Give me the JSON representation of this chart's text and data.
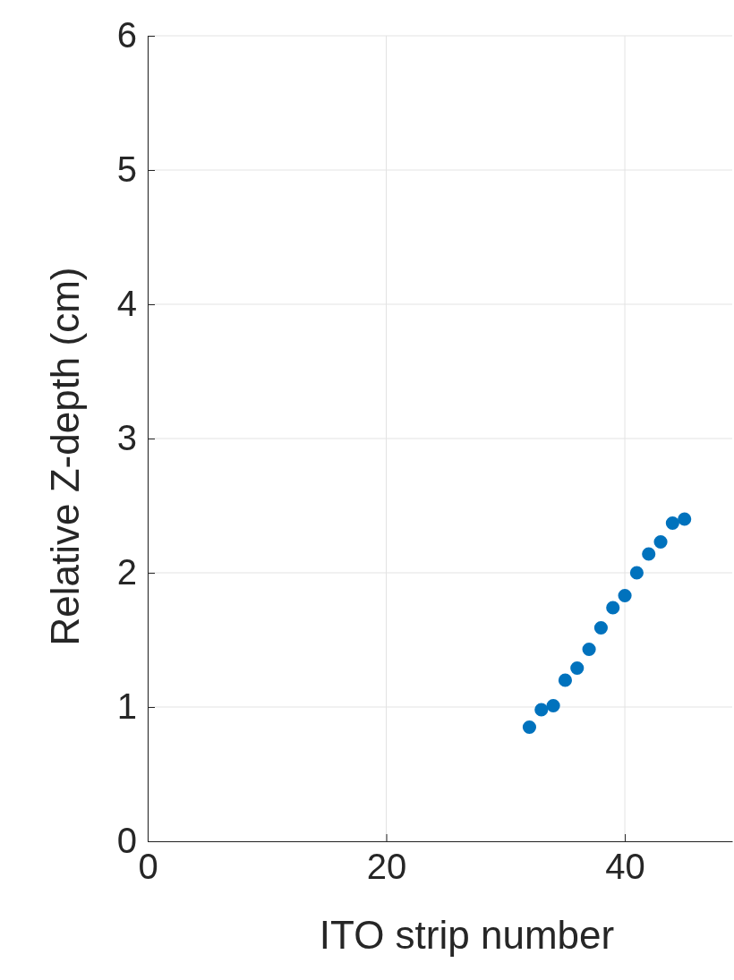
{
  "chart_data": {
    "type": "scatter",
    "xlabel": "ITO strip number",
    "ylabel": "Relative Z-depth (cm)",
    "x": [
      32,
      33,
      34,
      35,
      36,
      37,
      38,
      39,
      40,
      41,
      42,
      43,
      44,
      45
    ],
    "values": [
      0.85,
      0.98,
      1.01,
      1.2,
      1.29,
      1.43,
      1.59,
      1.74,
      1.83,
      2.0,
      2.14,
      2.23,
      2.37,
      2.4
    ],
    "color": "#0072bd",
    "marker": "circle",
    "grid": true,
    "xlim": [
      0,
      49
    ],
    "xticks": [
      0,
      20,
      40
    ],
    "ylim": [
      0,
      6
    ],
    "yticks": [
      0,
      1,
      2,
      3,
      4,
      5,
      6
    ]
  }
}
